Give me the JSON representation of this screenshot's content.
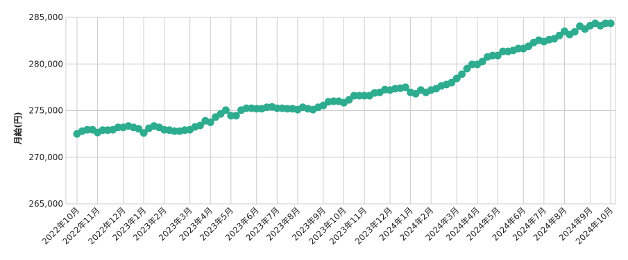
{
  "chart_data": {
    "type": "line",
    "y_label": "月給(円)",
    "color": "#2eac8f",
    "grid": true,
    "ylim": [
      265000,
      285000
    ],
    "yticks": [
      {
        "value": 265000,
        "label": "265,000"
      },
      {
        "value": 270000,
        "label": "270,000"
      },
      {
        "value": 275000,
        "label": "275,000"
      },
      {
        "value": 280000,
        "label": "280,000"
      },
      {
        "value": 285000,
        "label": "285,000"
      }
    ],
    "categories": [
      "2022年10月",
      null,
      null,
      null,
      "2022年11月",
      null,
      null,
      null,
      null,
      "2022年12月",
      null,
      null,
      null,
      "2023年1月",
      null,
      null,
      null,
      "2023年2月",
      null,
      null,
      null,
      null,
      "2023年3月",
      null,
      null,
      null,
      "2023年4月",
      null,
      null,
      null,
      "2023年5月",
      null,
      null,
      null,
      null,
      "2023年6月",
      null,
      null,
      null,
      "2023年7月",
      null,
      null,
      null,
      "2023年8月",
      null,
      null,
      null,
      null,
      "2023年9月",
      null,
      null,
      null,
      "2023年10月",
      null,
      null,
      null,
      "2023年11月",
      null,
      null,
      null,
      null,
      "2023年12月",
      null,
      null,
      null,
      "2024年1月",
      null,
      null,
      null,
      "2024年2月",
      null,
      null,
      null,
      null,
      "2024年3月",
      null,
      null,
      null,
      "2024年4月",
      null,
      null,
      null,
      "2024年5月",
      null,
      null,
      null,
      null,
      "2024年6月",
      null,
      null,
      null,
      "2024年7月",
      null,
      null,
      null,
      "2024年8月",
      null,
      null,
      null,
      null,
      "2024年9月",
      null,
      null,
      null,
      "2024年10月"
    ],
    "values": [
      272500,
      272800,
      272950,
      272950,
      272650,
      272900,
      272900,
      272950,
      273200,
      273200,
      273350,
      273200,
      273050,
      272600,
      273100,
      273350,
      273200,
      272950,
      272900,
      272800,
      272800,
      272900,
      272950,
      273250,
      273400,
      273900,
      273750,
      274300,
      274650,
      275050,
      274450,
      274450,
      275050,
      275250,
      275250,
      275200,
      275200,
      275350,
      275400,
      275250,
      275250,
      275200,
      275200,
      275100,
      275350,
      275200,
      275100,
      275350,
      275550,
      275950,
      276000,
      276000,
      275850,
      276150,
      276600,
      276600,
      276600,
      276600,
      276900,
      276950,
      277250,
      277200,
      277350,
      277400,
      277500,
      276950,
      276800,
      277200,
      276950,
      277200,
      277350,
      277650,
      277800,
      278000,
      278450,
      278900,
      279500,
      279950,
      279950,
      280250,
      280750,
      280900,
      280900,
      281350,
      281350,
      281450,
      281650,
      281650,
      281900,
      282300,
      282550,
      282400,
      282600,
      282700,
      283050,
      283500,
      283150,
      283450,
      284050,
      283750,
      284100,
      284350,
      284100,
      284350,
      284350
    ]
  }
}
